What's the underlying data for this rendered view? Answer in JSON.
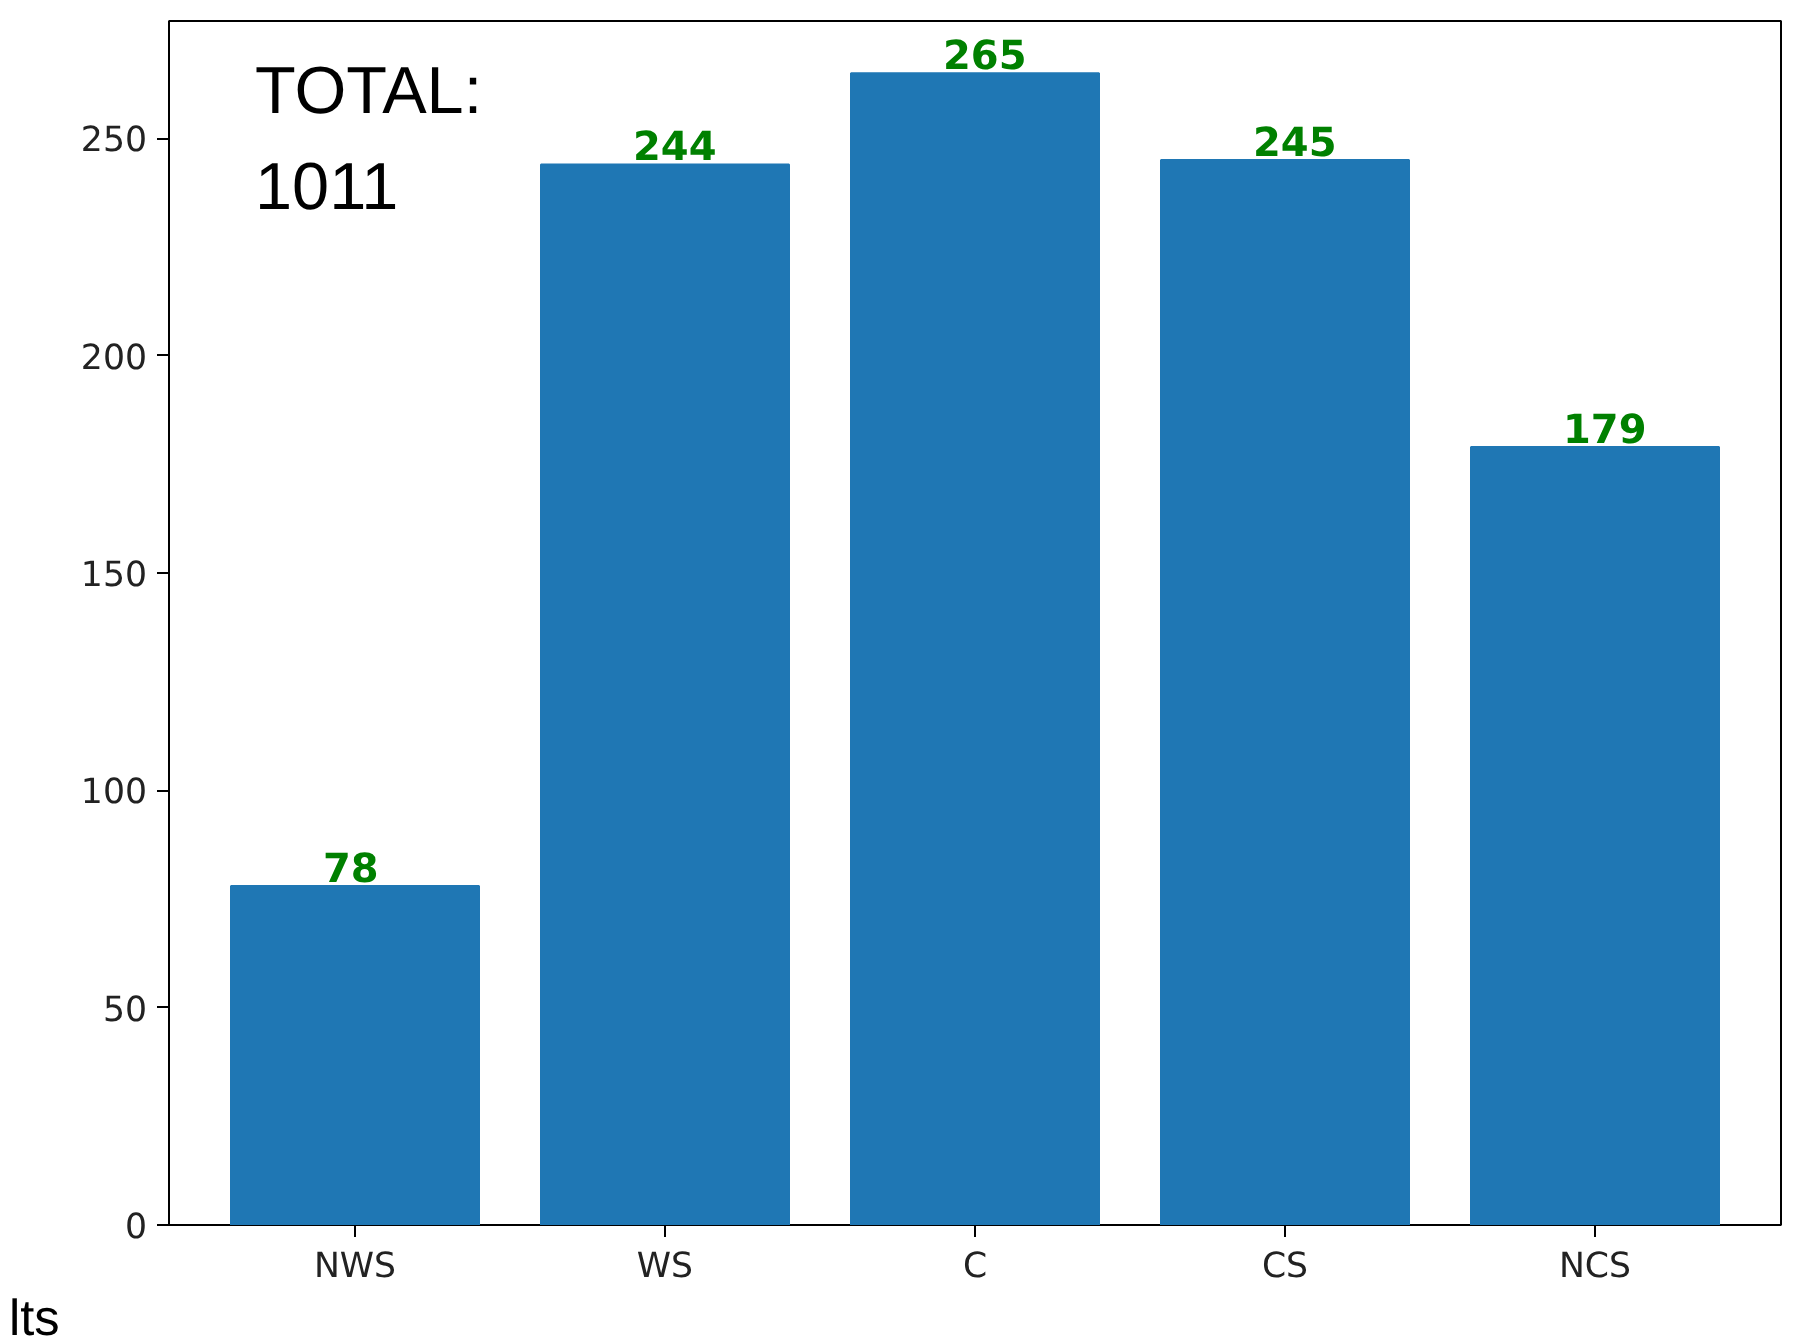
{
  "chart_data": {
    "type": "bar",
    "categories": [
      "NWS",
      "WS",
      "C",
      "CS",
      "NCS"
    ],
    "values": [
      78,
      244,
      265,
      245,
      179
    ],
    "color": "#1f77b4",
    "data_labels": true,
    "ylim": [
      0,
      277
    ],
    "yticks": [
      0,
      50,
      100,
      150,
      200,
      250
    ],
    "grid": false,
    "annotations": [
      "TOTAL:\n1011",
      "lts"
    ]
  }
}
